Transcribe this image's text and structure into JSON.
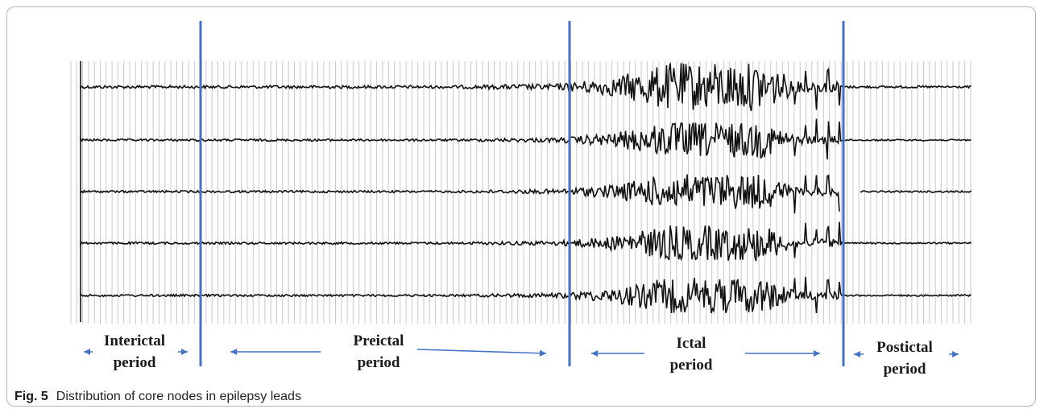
{
  "figure": {
    "caption_label": "Fig. 5",
    "caption_text": "Distribution of core nodes in epilepsy leads"
  },
  "periods": [
    {
      "line1": "Interictal",
      "line2": "period"
    },
    {
      "line1": "Preictal",
      "line2": "period"
    },
    {
      "line1": "Ictal",
      "line2": "period"
    },
    {
      "line1": "Postictal",
      "line2": "period"
    }
  ],
  "channel_count": 5,
  "colors": {
    "divider": "#4472c4",
    "arrow": "#4472c4",
    "trace": "#111111",
    "grid": "#c9c9c9"
  }
}
